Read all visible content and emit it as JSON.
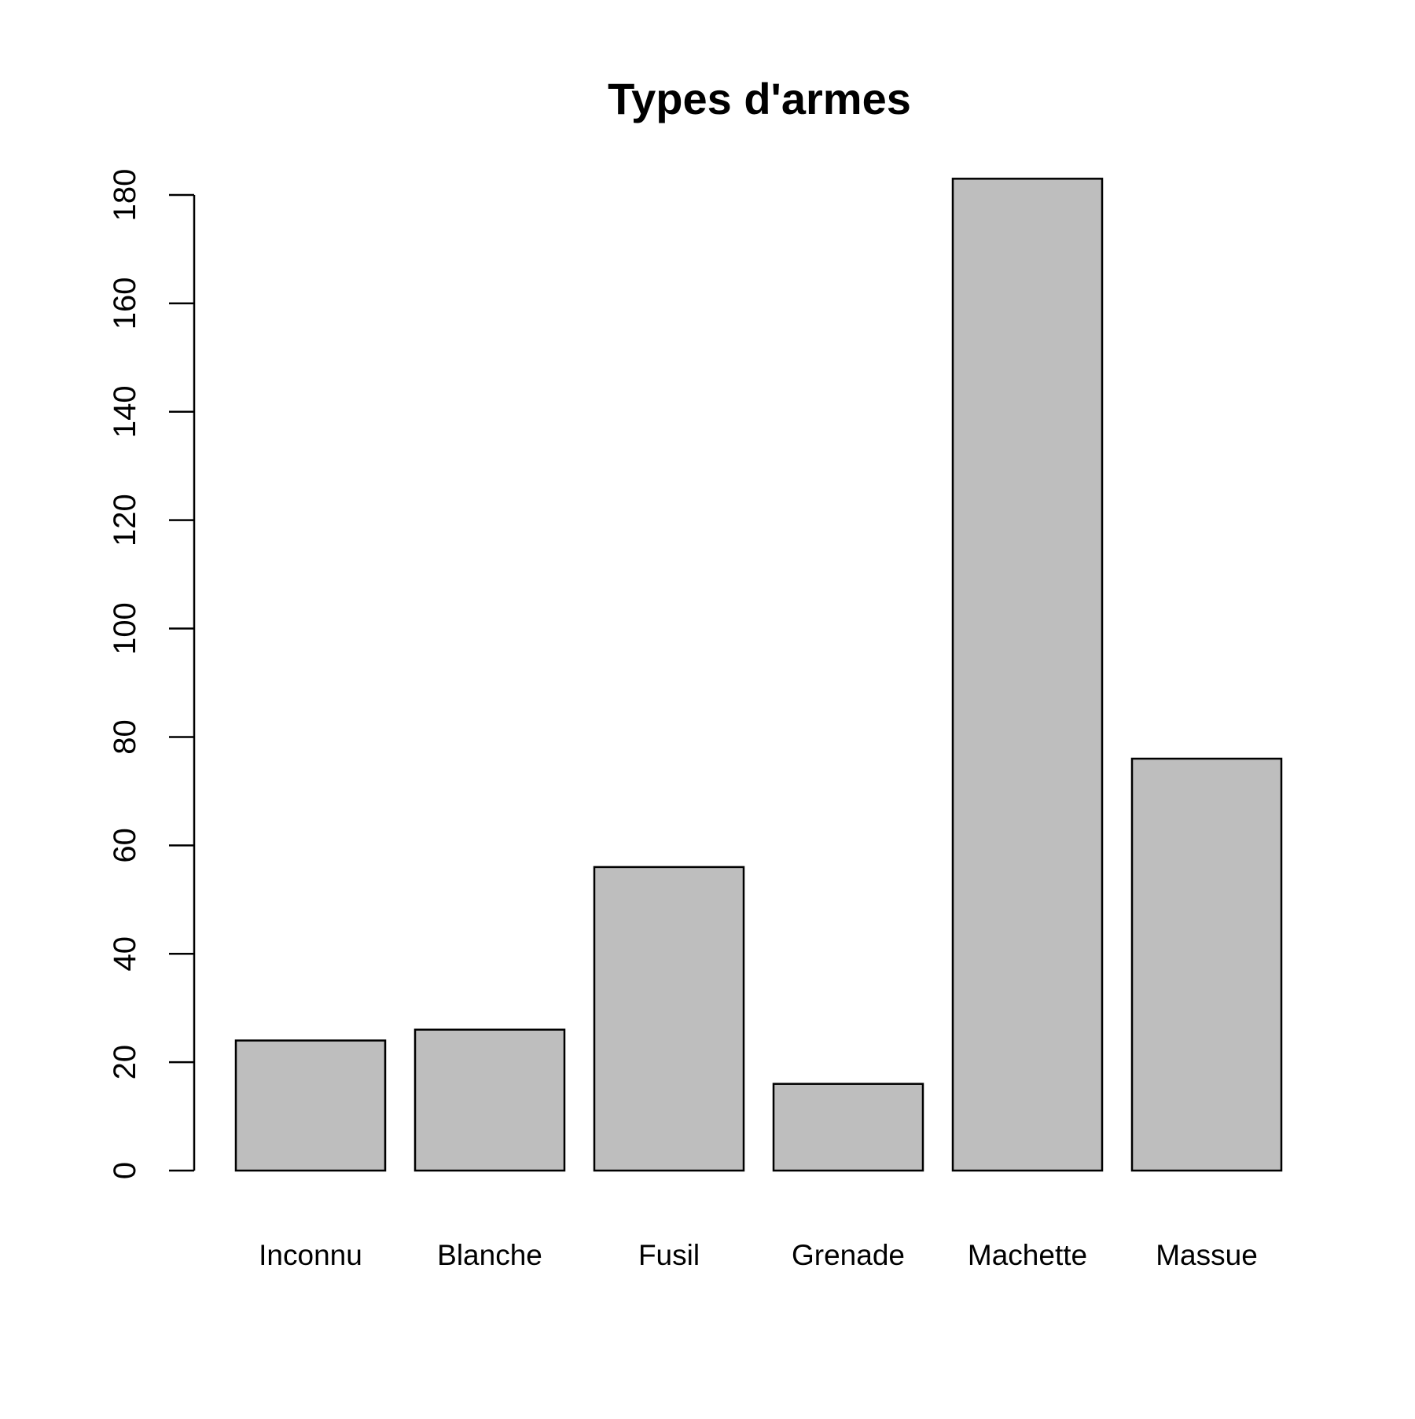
{
  "chart_data": {
    "type": "bar",
    "title": "Types d'armes",
    "xlabel": "",
    "ylabel": "",
    "categories": [
      "Inconnu",
      "Blanche",
      "Fusil",
      "Grenade",
      "Machette",
      "Massue"
    ],
    "values": [
      24,
      26,
      56,
      16,
      183,
      76
    ],
    "ylim": [
      0,
      183
    ],
    "yticks": [
      0,
      20,
      40,
      60,
      80,
      100,
      120,
      140,
      160,
      180
    ],
    "grid": false,
    "legend": "none",
    "colors": {
      "bar_fill": "#bebebe",
      "bar_stroke": "#000000",
      "axis": "#000000",
      "background": "#ffffff"
    }
  }
}
